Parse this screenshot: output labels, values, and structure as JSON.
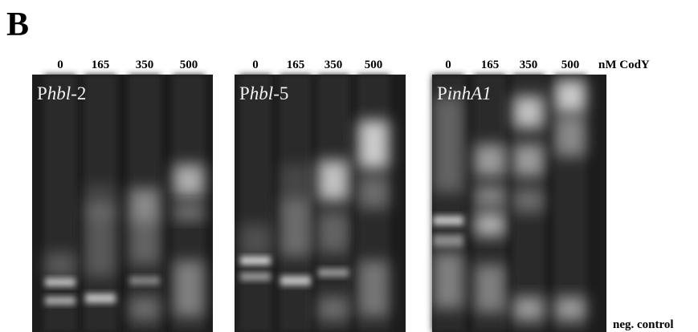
{
  "panel_label": "B",
  "unit_label": "nM CodY",
  "control_label": "neg. control",
  "gels": [
    {
      "name": {
        "prefix": "P",
        "italic": "hbl",
        "suffix": "-2"
      },
      "lanes": [
        "0",
        "165",
        "350",
        "500"
      ]
    },
    {
      "name": {
        "prefix": "P",
        "italic": "hbl",
        "suffix": "-5"
      },
      "lanes": [
        "0",
        "165",
        "350",
        "500"
      ]
    },
    {
      "name": {
        "prefix": "P",
        "italic": "inhA1",
        "suffix": ""
      },
      "lanes": [
        "0",
        "165",
        "350",
        "500"
      ]
    }
  ]
}
